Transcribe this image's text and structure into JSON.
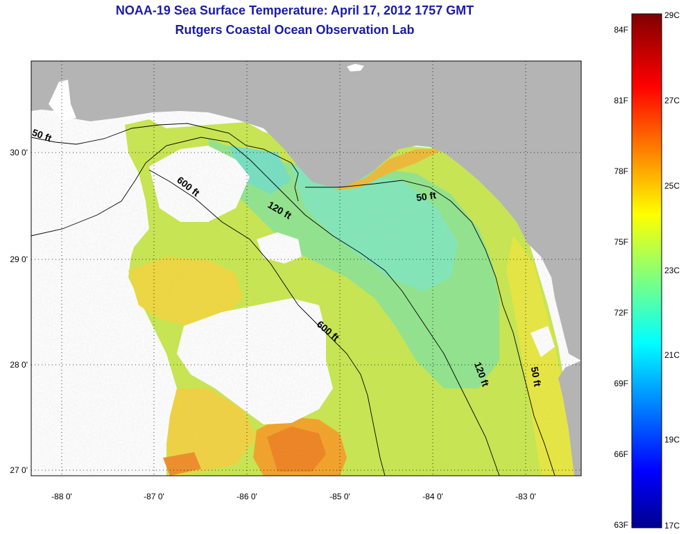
{
  "title": {
    "line1": "NOAA-19 Sea Surface Temperature:  April 17, 2012 1757 GMT",
    "line2": "Rutgers Coastal Ocean Observation Lab"
  },
  "map": {
    "longitude_labels": [
      "-88 0'",
      "-87 0'",
      "-86 0'",
      "-85 0'",
      "-84 0'",
      "-83 0'"
    ],
    "latitude_labels": [
      "30 0'",
      "29 0'",
      "28 0'",
      "27 0'"
    ],
    "contour_labels": [
      "50 ft",
      "600 ft",
      "120 ft",
      "50 ft",
      "600 ft",
      "120 ft",
      "50 ft"
    ],
    "colors": {
      "land": "#b4b4b4",
      "no_data": "#ffffff"
    }
  },
  "colorbar": {
    "fahrenheit_labels": [
      "84F",
      "81F",
      "78F",
      "75F",
      "72F",
      "69F",
      "66F",
      "63F"
    ],
    "celsius_labels": [
      "29C",
      "27C",
      "25C",
      "23C",
      "21C",
      "19C",
      "17C"
    ],
    "colormap": "jet"
  }
}
